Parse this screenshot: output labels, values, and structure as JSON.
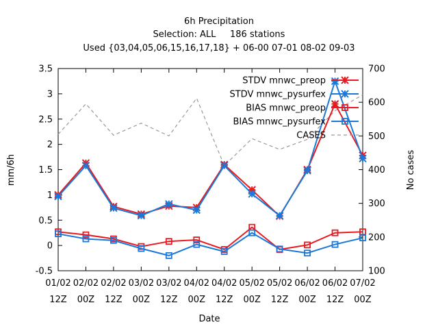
{
  "chart_data": {
    "type": "line",
    "title_lines": [
      "6h Precipitation",
      "Selection: ALL     186 stations",
      "Used {03,04,05,06,15,16,17,18} + 06-00 07-01 08-02 09-03"
    ],
    "xlabel": "Date",
    "ylabel": "mm/6h",
    "y2label": "No cases",
    "categories": [
      [
        "01/02",
        "12Z"
      ],
      [
        "02/02",
        "00Z"
      ],
      [
        "02/02",
        "12Z"
      ],
      [
        "03/02",
        "00Z"
      ],
      [
        "03/02",
        "12Z"
      ],
      [
        "04/02",
        "00Z"
      ],
      [
        "04/02",
        "12Z"
      ],
      [
        "05/02",
        "00Z"
      ],
      [
        "05/02",
        "12Z"
      ],
      [
        "06/02",
        "00Z"
      ],
      [
        "06/02",
        "12Z"
      ],
      [
        "07/02",
        "00Z"
      ]
    ],
    "ylim": [
      -0.5,
      3.5
    ],
    "yticks": [
      "-0.5",
      "0",
      "0.5",
      "1",
      "1.5",
      "2",
      "2.5",
      "3",
      "3.5"
    ],
    "ytick_values": [
      -0.5,
      0,
      0.5,
      1,
      1.5,
      2,
      2.5,
      3,
      3.5
    ],
    "y2lim": [
      100,
      700
    ],
    "y2ticks": [
      "100",
      "200",
      "300",
      "400",
      "500",
      "600",
      "700"
    ],
    "y2tick_values": [
      100,
      200,
      300,
      400,
      500,
      600,
      700
    ],
    "grid": false,
    "legend_position": "top-right",
    "series": [
      {
        "name": "STDV mnwc_preop",
        "axis": "y",
        "color": "#e8191f",
        "marker": "star",
        "dash": false,
        "values": [
          1.0,
          1.63,
          0.77,
          0.62,
          0.78,
          0.75,
          1.6,
          1.1,
          0.58,
          1.5,
          2.8,
          1.78
        ]
      },
      {
        "name": "STDV mnwc_pysurfex",
        "axis": "y",
        "color": "#1a78d8",
        "marker": "star",
        "dash": false,
        "values": [
          0.97,
          1.58,
          0.74,
          0.59,
          0.82,
          0.7,
          1.58,
          1.02,
          0.59,
          1.48,
          3.25,
          1.72
        ]
      },
      {
        "name": "BIAS mnwc_preop",
        "axis": "y",
        "color": "#e8191f",
        "marker": "square",
        "dash": false,
        "values": [
          0.27,
          0.21,
          0.13,
          -0.02,
          0.08,
          0.11,
          -0.08,
          0.36,
          -0.08,
          0.01,
          0.25,
          0.27
        ]
      },
      {
        "name": "BIAS mnwc_pysurfex",
        "axis": "y",
        "color": "#1a78d8",
        "marker": "square",
        "dash": false,
        "values": [
          0.23,
          0.13,
          0.1,
          -0.06,
          -0.2,
          0.02,
          -0.12,
          0.25,
          -0.07,
          -0.15,
          0.02,
          0.15
        ]
      },
      {
        "name": "CASES",
        "axis": "y2",
        "color": "#999999",
        "marker": "none",
        "dash": true,
        "values": [
          505,
          595,
          502,
          538,
          500,
          612,
          412,
          492,
          460,
          490,
          575,
          622
        ]
      }
    ]
  }
}
